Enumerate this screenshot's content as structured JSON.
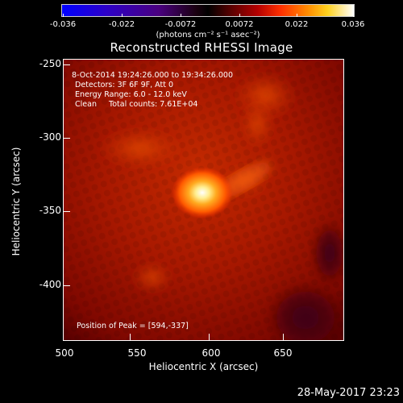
{
  "colorbar": {
    "ticks": [
      "-0.036",
      "-0.022",
      "-0.0072",
      "0.0072",
      "0.022",
      "0.036"
    ],
    "units": "(photons cm⁻² s⁻¹ asec⁻²)"
  },
  "title": "Reconstructed RHESSI Image",
  "annotations": {
    "time_range": "8-Oct-2014 19:24:26.000 to 19:34:26.000",
    "detectors": "Detectors: 3F 6F 9F, Att 0",
    "energy": "Energy Range: 6.0 - 12.0 keV",
    "clean": "Clean     Total counts: 7.61E+04",
    "peak": "Position of Peak = [594,-337]"
  },
  "axes": {
    "xlabel": "Heliocentric X (arcsec)",
    "ylabel": "Heliocentric Y (arcsec)",
    "xticks": [
      "500",
      "550",
      "600",
      "650"
    ],
    "yticks": [
      "-250",
      "-300",
      "-350",
      "-400"
    ]
  },
  "timestamp": "28-May-2017 23:23",
  "colors": {
    "background": "#000000",
    "text": "#ffffff"
  }
}
